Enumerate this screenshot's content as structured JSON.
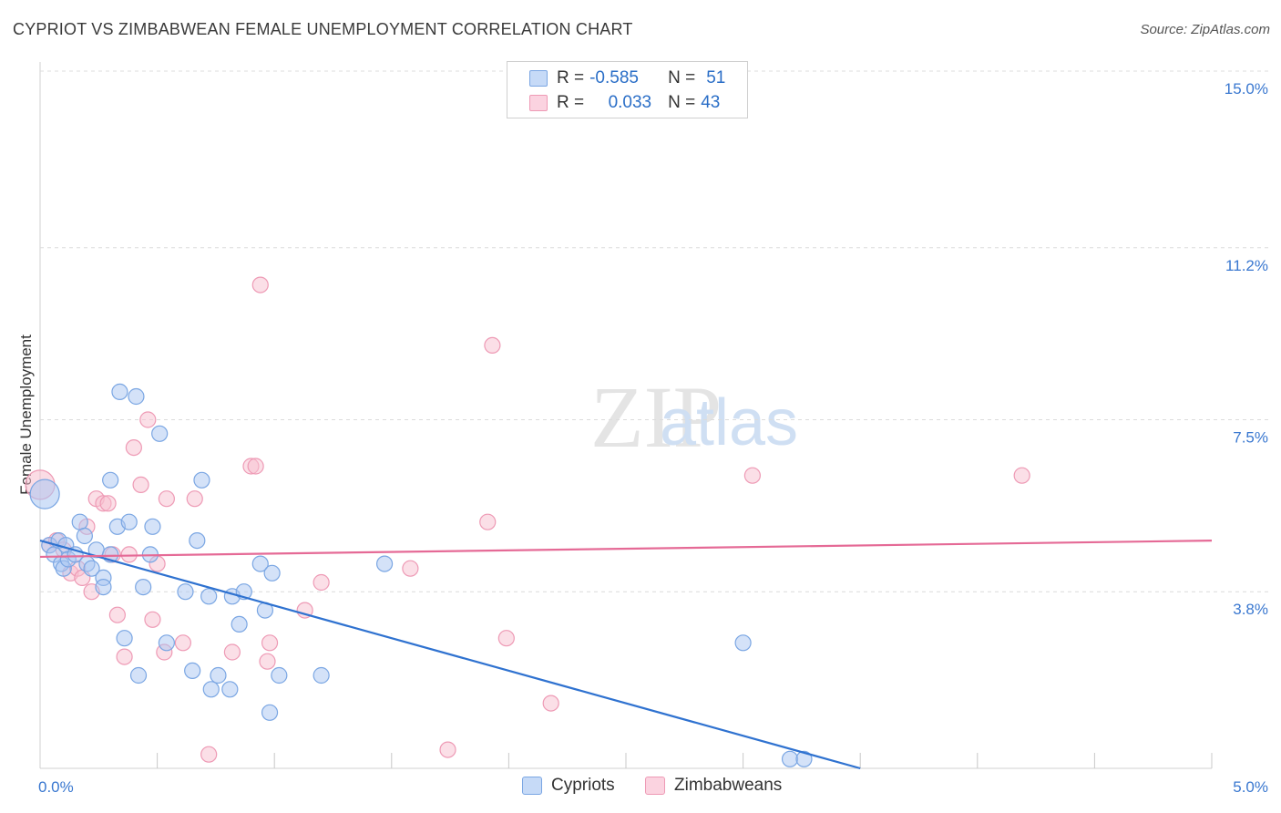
{
  "header": {
    "title": "CYPRIOT VS ZIMBABWEAN FEMALE UNEMPLOYMENT CORRELATION CHART",
    "source": "Source: ZipAtlas.com"
  },
  "watermark": {
    "zip": "ZIP",
    "atlas": "atlas"
  },
  "legend": {
    "rows": [
      {
        "r_label": "R =",
        "r_value": "-0.585",
        "n_label": "N =",
        "n_value": "51",
        "color": "#7baaf0"
      },
      {
        "r_label": "R =",
        "r_value": "0.033",
        "n_label": "N =",
        "n_value": "43",
        "color": "#f4a6bd"
      }
    ]
  },
  "colors": {
    "blue_fill": "#a9c6f2",
    "blue_stroke": "#7aa6e3",
    "blue_line": "#2f72d0",
    "pink_fill": "#f7bfd0",
    "pink_stroke": "#ee9ab5",
    "pink_line": "#e56a96",
    "tick_label": "#3a78d0"
  },
  "chart_data": {
    "type": "scatter",
    "title": "CYPRIOT VS ZIMBABWEAN FEMALE UNEMPLOYMENT CORRELATION CHART",
    "xlabel": "",
    "ylabel": "Female Unemployment",
    "xlim": [
      0,
      5.0
    ],
    "ylim": [
      0,
      15.0
    ],
    "x_tick_labels": [
      "0.0%",
      "5.0%"
    ],
    "y_ticks": [
      3.8,
      7.5,
      11.2,
      15.0
    ],
    "y_tick_labels": [
      "3.8%",
      "7.5%",
      "11.2%",
      "15.0%"
    ],
    "grid": true,
    "legend_position": "bottom",
    "series": [
      {
        "name": "Cypriots",
        "r": -0.585,
        "n": 51,
        "trend": {
          "x": [
            0.0,
            3.5
          ],
          "y": [
            4.9,
            0.0
          ]
        },
        "points": [
          {
            "x": 0.02,
            "y": 5.9,
            "big": true
          },
          {
            "x": 0.04,
            "y": 4.8
          },
          {
            "x": 0.06,
            "y": 4.6
          },
          {
            "x": 0.08,
            "y": 4.9
          },
          {
            "x": 0.09,
            "y": 4.4
          },
          {
            "x": 0.1,
            "y": 4.3
          },
          {
            "x": 0.11,
            "y": 4.8
          },
          {
            "x": 0.12,
            "y": 4.5
          },
          {
            "x": 0.15,
            "y": 4.6
          },
          {
            "x": 0.17,
            "y": 5.3
          },
          {
            "x": 0.19,
            "y": 5.0
          },
          {
            "x": 0.2,
            "y": 4.4
          },
          {
            "x": 0.22,
            "y": 4.3
          },
          {
            "x": 0.24,
            "y": 4.7
          },
          {
            "x": 0.27,
            "y": 4.1
          },
          {
            "x": 0.27,
            "y": 3.9
          },
          {
            "x": 0.3,
            "y": 4.6
          },
          {
            "x": 0.3,
            "y": 6.2
          },
          {
            "x": 0.33,
            "y": 5.2
          },
          {
            "x": 0.34,
            "y": 8.1
          },
          {
            "x": 0.36,
            "y": 2.8
          },
          {
            "x": 0.38,
            "y": 5.3
          },
          {
            "x": 0.41,
            "y": 8.0
          },
          {
            "x": 0.42,
            "y": 2.0
          },
          {
            "x": 0.44,
            "y": 3.9
          },
          {
            "x": 0.47,
            "y": 4.6
          },
          {
            "x": 0.48,
            "y": 5.2
          },
          {
            "x": 0.51,
            "y": 7.2
          },
          {
            "x": 0.54,
            "y": 2.7
          },
          {
            "x": 0.62,
            "y": 3.8
          },
          {
            "x": 0.65,
            "y": 2.1
          },
          {
            "x": 0.67,
            "y": 4.9
          },
          {
            "x": 0.69,
            "y": 6.2
          },
          {
            "x": 0.72,
            "y": 3.7
          },
          {
            "x": 0.73,
            "y": 1.7
          },
          {
            "x": 0.76,
            "y": 2.0
          },
          {
            "x": 0.81,
            "y": 1.7
          },
          {
            "x": 0.82,
            "y": 3.7
          },
          {
            "x": 0.85,
            "y": 3.1
          },
          {
            "x": 0.87,
            "y": 3.8
          },
          {
            "x": 0.94,
            "y": 4.4
          },
          {
            "x": 0.96,
            "y": 3.4
          },
          {
            "x": 0.98,
            "y": 1.2
          },
          {
            "x": 0.99,
            "y": 4.2
          },
          {
            "x": 1.02,
            "y": 2.0
          },
          {
            "x": 1.2,
            "y": 2.0
          },
          {
            "x": 1.47,
            "y": 4.4
          },
          {
            "x": 3.0,
            "y": 2.7
          },
          {
            "x": 3.2,
            "y": 0.2
          },
          {
            "x": 3.26,
            "y": 0.2
          }
        ]
      },
      {
        "name": "Zimbabweans",
        "r": 0.033,
        "n": 43,
        "trend": {
          "x": [
            0.0,
            5.0
          ],
          "y": [
            4.55,
            4.9
          ]
        },
        "points": [
          {
            "x": 0.0,
            "y": 6.1,
            "big": true
          },
          {
            "x": 0.04,
            "y": 4.8
          },
          {
            "x": 0.07,
            "y": 4.9
          },
          {
            "x": 0.1,
            "y": 4.7
          },
          {
            "x": 0.13,
            "y": 4.2
          },
          {
            "x": 0.16,
            "y": 4.3
          },
          {
            "x": 0.18,
            "y": 4.1
          },
          {
            "x": 0.2,
            "y": 5.2
          },
          {
            "x": 0.22,
            "y": 3.8
          },
          {
            "x": 0.24,
            "y": 5.8
          },
          {
            "x": 0.27,
            "y": 5.7
          },
          {
            "x": 0.29,
            "y": 5.7
          },
          {
            "x": 0.31,
            "y": 4.6
          },
          {
            "x": 0.33,
            "y": 3.3
          },
          {
            "x": 0.36,
            "y": 2.4
          },
          {
            "x": 0.38,
            "y": 4.6
          },
          {
            "x": 0.4,
            "y": 6.9
          },
          {
            "x": 0.43,
            "y": 6.1
          },
          {
            "x": 0.46,
            "y": 7.5
          },
          {
            "x": 0.48,
            "y": 3.2
          },
          {
            "x": 0.5,
            "y": 4.4
          },
          {
            "x": 0.53,
            "y": 2.5
          },
          {
            "x": 0.54,
            "y": 5.8
          },
          {
            "x": 0.61,
            "y": 2.7
          },
          {
            "x": 0.66,
            "y": 5.8
          },
          {
            "x": 0.72,
            "y": 0.3
          },
          {
            "x": 0.82,
            "y": 2.5
          },
          {
            "x": 0.9,
            "y": 6.5
          },
          {
            "x": 0.92,
            "y": 6.5
          },
          {
            "x": 0.94,
            "y": 10.4
          },
          {
            "x": 0.97,
            "y": 2.3
          },
          {
            "x": 0.98,
            "y": 2.7
          },
          {
            "x": 1.13,
            "y": 3.4
          },
          {
            "x": 1.2,
            "y": 4.0
          },
          {
            "x": 1.58,
            "y": 4.3
          },
          {
            "x": 1.74,
            "y": 0.4
          },
          {
            "x": 1.91,
            "y": 5.3
          },
          {
            "x": 1.93,
            "y": 9.1
          },
          {
            "x": 1.99,
            "y": 2.8
          },
          {
            "x": 2.18,
            "y": 1.4
          },
          {
            "x": 3.04,
            "y": 6.3
          },
          {
            "x": 4.19,
            "y": 6.3
          }
        ]
      }
    ]
  }
}
